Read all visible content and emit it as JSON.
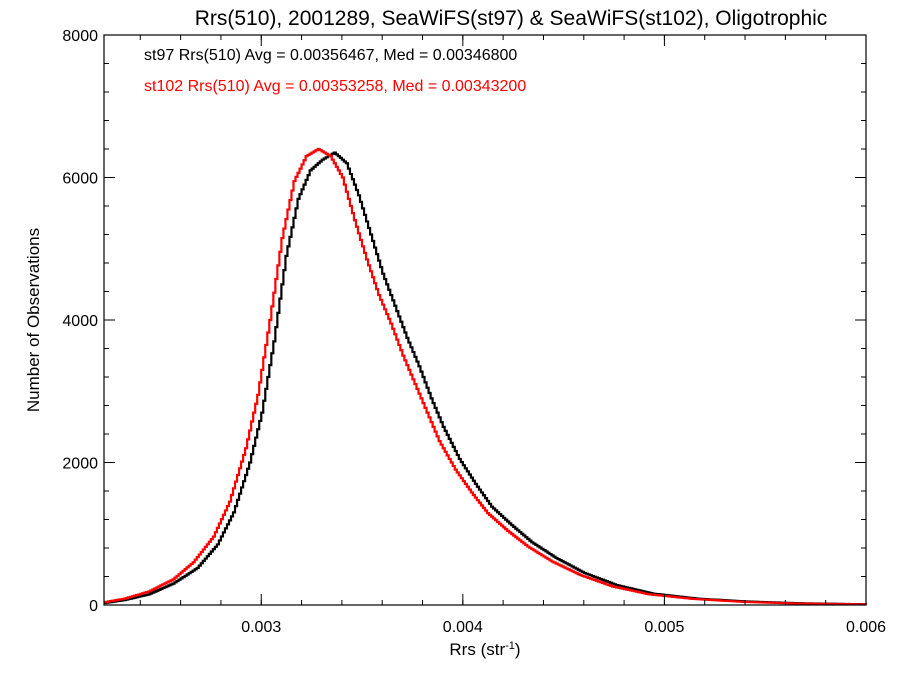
{
  "chart_data": {
    "type": "line",
    "title": "Rrs(510), 2001289, SeaWiFS(st97) & SeaWiFS(st102), Oligotrophic",
    "xlabel": "Rrs (str",
    "xlabel_sup": "-1",
    "xlabel_close": ")",
    "ylabel": "Number of Observations",
    "xlim": [
      0.00222,
      0.006
    ],
    "ylim": [
      0,
      8000
    ],
    "xticks": [
      {
        "value": 0.003,
        "label": "0.003"
      },
      {
        "value": 0.004,
        "label": "0.004"
      },
      {
        "value": 0.005,
        "label": "0.005"
      },
      {
        "value": 0.006,
        "label": "0.006"
      }
    ],
    "yticks": [
      {
        "value": 0,
        "label": "0"
      },
      {
        "value": 2000,
        "label": "2000"
      },
      {
        "value": 4000,
        "label": "4000"
      },
      {
        "value": 6000,
        "label": "6000"
      },
      {
        "value": 8000,
        "label": "8000"
      }
    ],
    "legend_placement": "top-left",
    "grid": false,
    "series": [
      {
        "name": "st97",
        "color": "#000000",
        "annotation": "st97 Rrs(510) Avg = 0.00356467, Med = 0.00346800",
        "points": [
          [
            0.0022,
            20
          ],
          [
            0.00232,
            70
          ],
          [
            0.00244,
            150
          ],
          [
            0.00256,
            300
          ],
          [
            0.00268,
            520
          ],
          [
            0.00278,
            850
          ],
          [
            0.00286,
            1300
          ],
          [
            0.00294,
            2000
          ],
          [
            0.003,
            2700
          ],
          [
            0.00306,
            3700
          ],
          [
            0.00312,
            4900
          ],
          [
            0.00318,
            5700
          ],
          [
            0.00324,
            6100
          ],
          [
            0.0033,
            6250
          ],
          [
            0.00336,
            6350
          ],
          [
            0.00342,
            6200
          ],
          [
            0.00348,
            5750
          ],
          [
            0.00354,
            5200
          ],
          [
            0.0036,
            4650
          ],
          [
            0.00366,
            4200
          ],
          [
            0.00372,
            3750
          ],
          [
            0.00378,
            3350
          ],
          [
            0.00384,
            2900
          ],
          [
            0.0039,
            2500
          ],
          [
            0.00398,
            2050
          ],
          [
            0.00406,
            1700
          ],
          [
            0.00414,
            1380
          ],
          [
            0.00424,
            1120
          ],
          [
            0.00434,
            880
          ],
          [
            0.00446,
            660
          ],
          [
            0.0046,
            450
          ],
          [
            0.00476,
            280
          ],
          [
            0.00494,
            160
          ],
          [
            0.00516,
            90
          ],
          [
            0.0054,
            50
          ],
          [
            0.00566,
            25
          ],
          [
            0.006,
            10
          ]
        ]
      },
      {
        "name": "st102",
        "color": "#ff0000",
        "annotation": "st102 Rrs(510) Avg = 0.00353258, Med = 0.00343200",
        "points": [
          [
            0.0022,
            30
          ],
          [
            0.00232,
            90
          ],
          [
            0.00244,
            190
          ],
          [
            0.00256,
            360
          ],
          [
            0.00266,
            600
          ],
          [
            0.00276,
            960
          ],
          [
            0.00284,
            1450
          ],
          [
            0.00292,
            2200
          ],
          [
            0.00298,
            2950
          ],
          [
            0.00304,
            4000
          ],
          [
            0.0031,
            5150
          ],
          [
            0.00316,
            5950
          ],
          [
            0.00322,
            6300
          ],
          [
            0.00328,
            6400
          ],
          [
            0.00334,
            6300
          ],
          [
            0.0034,
            6000
          ],
          [
            0.00346,
            5400
          ],
          [
            0.00352,
            4850
          ],
          [
            0.00358,
            4350
          ],
          [
            0.00364,
            3950
          ],
          [
            0.0037,
            3500
          ],
          [
            0.00376,
            3100
          ],
          [
            0.00382,
            2700
          ],
          [
            0.00388,
            2300
          ],
          [
            0.00396,
            1900
          ],
          [
            0.00404,
            1580
          ],
          [
            0.00412,
            1290
          ],
          [
            0.00422,
            1040
          ],
          [
            0.00432,
            820
          ],
          [
            0.00444,
            610
          ],
          [
            0.00458,
            420
          ],
          [
            0.00474,
            260
          ],
          [
            0.00492,
            150
          ],
          [
            0.00514,
            85
          ],
          [
            0.00538,
            45
          ],
          [
            0.00564,
            22
          ],
          [
            0.006,
            8
          ]
        ]
      }
    ]
  }
}
